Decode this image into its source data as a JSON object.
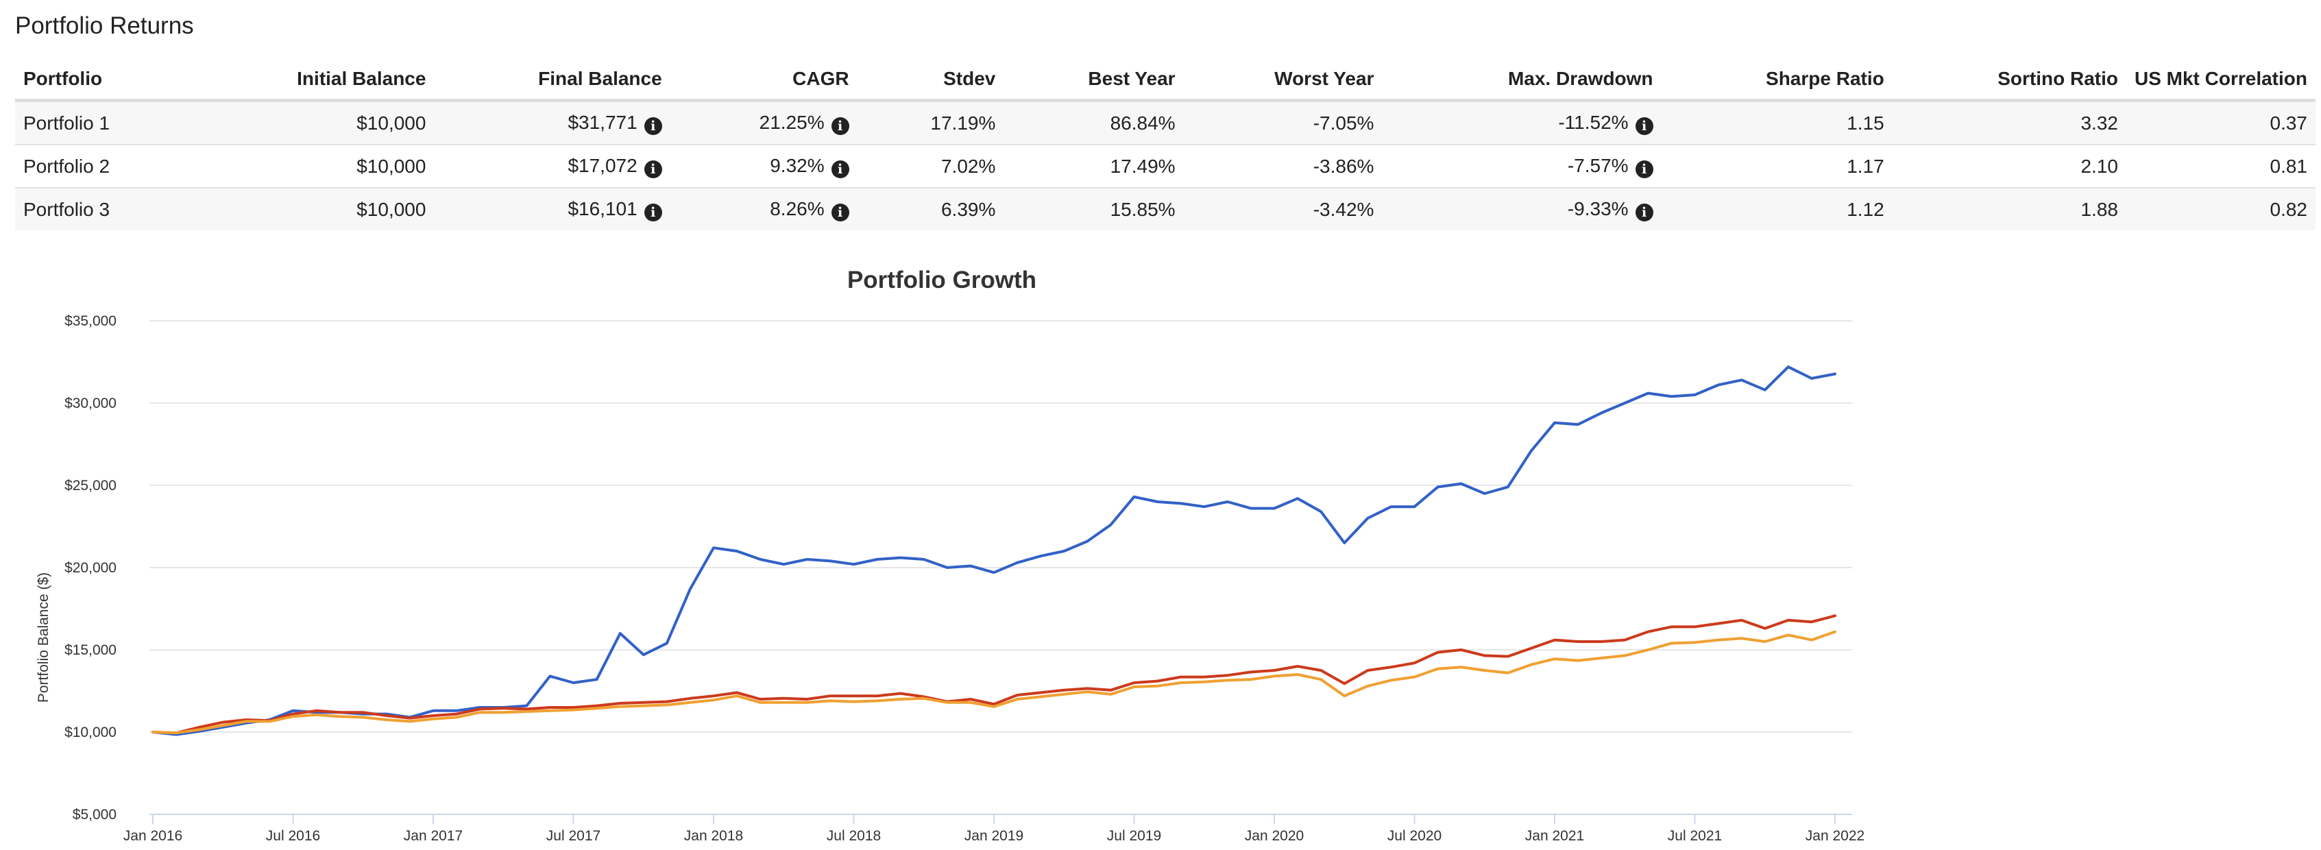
{
  "section_title": "Portfolio Returns",
  "table": {
    "columns": [
      "Portfolio",
      "Initial Balance",
      "Final Balance",
      "CAGR",
      "Stdev",
      "Best Year",
      "Worst Year",
      "Max. Drawdown",
      "Sharpe Ratio",
      "Sortino Ratio",
      "US Mkt Correlation"
    ],
    "rows": [
      {
        "portfolio": "Portfolio 1",
        "initial_balance": "$10,000",
        "final_balance": "$31,771",
        "cagr": "21.25%",
        "stdev": "17.19%",
        "best_year": "86.84%",
        "worst_year": "-7.05%",
        "max_drawdown": "-11.52%",
        "sharpe_ratio": "1.15",
        "sortino_ratio": "3.32",
        "us_mkt_correlation": "0.37"
      },
      {
        "portfolio": "Portfolio 2",
        "initial_balance": "$10,000",
        "final_balance": "$17,072",
        "cagr": "9.32%",
        "stdev": "7.02%",
        "best_year": "17.49%",
        "worst_year": "-3.86%",
        "max_drawdown": "-7.57%",
        "sharpe_ratio": "1.17",
        "sortino_ratio": "2.10",
        "us_mkt_correlation": "0.81"
      },
      {
        "portfolio": "Portfolio 3",
        "initial_balance": "$10,000",
        "final_balance": "$16,101",
        "cagr": "8.26%",
        "stdev": "6.39%",
        "best_year": "15.85%",
        "worst_year": "-3.42%",
        "max_drawdown": "-9.33%",
        "sharpe_ratio": "1.12",
        "sortino_ratio": "1.88",
        "us_mkt_correlation": "0.82"
      }
    ],
    "info_icon": "info-circle-icon",
    "info_glyph": "i"
  },
  "chart_data": {
    "type": "line",
    "title": "Portfolio Growth",
    "xlabel": "",
    "ylabel": "Portfolio Balance ($)",
    "ylim": [
      5000,
      35000
    ],
    "yticks": [
      5000,
      10000,
      15000,
      20000,
      25000,
      30000,
      35000
    ],
    "ytick_labels": [
      "$5,000",
      "$10,000",
      "$15,000",
      "$20,000",
      "$25,000",
      "$30,000",
      "$35,000"
    ],
    "xlim": [
      "2016-01",
      "2022-01"
    ],
    "xticks": [
      "2016-01",
      "2016-07",
      "2017-01",
      "2017-07",
      "2018-01",
      "2018-07",
      "2019-01",
      "2019-07",
      "2020-01",
      "2020-07",
      "2021-01",
      "2021-07",
      "2022-01"
    ],
    "xtick_labels": [
      "Jan 2016",
      "Jul 2016",
      "Jan 2017",
      "Jul 2017",
      "Jan 2018",
      "Jul 2018",
      "Jan 2019",
      "Jul 2019",
      "Jan 2020",
      "Jul 2020",
      "Jan 2021",
      "Jul 2021",
      "Jan 2022"
    ],
    "x": [
      "2016-01",
      "2016-02",
      "2016-03",
      "2016-04",
      "2016-05",
      "2016-06",
      "2016-07",
      "2016-08",
      "2016-09",
      "2016-10",
      "2016-11",
      "2016-12",
      "2017-01",
      "2017-02",
      "2017-03",
      "2017-04",
      "2017-05",
      "2017-06",
      "2017-07",
      "2017-08",
      "2017-09",
      "2017-10",
      "2017-11",
      "2017-12",
      "2018-01",
      "2018-02",
      "2018-03",
      "2018-04",
      "2018-05",
      "2018-06",
      "2018-07",
      "2018-08",
      "2018-09",
      "2018-10",
      "2018-11",
      "2018-12",
      "2019-01",
      "2019-02",
      "2019-03",
      "2019-04",
      "2019-05",
      "2019-06",
      "2019-07",
      "2019-08",
      "2019-09",
      "2019-10",
      "2019-11",
      "2019-12",
      "2020-01",
      "2020-02",
      "2020-03",
      "2020-04",
      "2020-05",
      "2020-06",
      "2020-07",
      "2020-08",
      "2020-09",
      "2020-10",
      "2020-11",
      "2020-12",
      "2021-01",
      "2021-02",
      "2021-03",
      "2021-04",
      "2021-05",
      "2021-06",
      "2021-07",
      "2021-08",
      "2021-09",
      "2021-10",
      "2021-11",
      "2021-12",
      "2022-01"
    ],
    "grid": true,
    "legend": "none",
    "series": [
      {
        "color": "#3261c7",
        "values": [
          10000,
          9850,
          10050,
          10300,
          10550,
          10750,
          11300,
          11200,
          11200,
          11100,
          11100,
          10900,
          11300,
          11300,
          11500,
          11500,
          11600,
          13400,
          13000,
          13200,
          16000,
          14700,
          15400,
          18700,
          21200,
          21000,
          20500,
          20200,
          20500,
          20400,
          20200,
          20500,
          20600,
          20500,
          20000,
          20100,
          19700,
          20300,
          20700,
          21000,
          21600,
          22600,
          24300,
          24000,
          23900,
          23700,
          24000,
          23600,
          23600,
          24200,
          23400,
          21500,
          23000,
          23700,
          23700,
          24900,
          25100,
          24500,
          24900,
          27100,
          28800,
          28700,
          29400,
          30000,
          30600,
          30400,
          30500,
          31100,
          31400,
          30800,
          32200,
          31500,
          31771
        ]
      },
      {
        "color": "#cc3a1c",
        "values": [
          10000,
          9950,
          10300,
          10600,
          10750,
          10700,
          11100,
          11300,
          11200,
          11200,
          11000,
          10850,
          11000,
          11100,
          11400,
          11450,
          11400,
          11500,
          11500,
          11600,
          11750,
          11800,
          11850,
          12050,
          12200,
          12400,
          12000,
          12050,
          12000,
          12200,
          12200,
          12200,
          12350,
          12150,
          11850,
          12000,
          11700,
          12250,
          12400,
          12550,
          12650,
          12550,
          13000,
          13100,
          13350,
          13350,
          13450,
          13650,
          13750,
          14000,
          13750,
          12950,
          13750,
          13950,
          14200,
          14850,
          15000,
          14650,
          14600,
          15100,
          15600,
          15500,
          15500,
          15600,
          16100,
          16400,
          16400,
          16600,
          16800,
          16300,
          16800,
          16700,
          17072
        ]
      },
      {
        "color": "#f0a032",
        "values": [
          10000,
          9950,
          10150,
          10400,
          10650,
          10650,
          10950,
          11050,
          10950,
          10900,
          10750,
          10650,
          10800,
          10900,
          11200,
          11200,
          11250,
          11300,
          11350,
          11450,
          11550,
          11600,
          11650,
          11800,
          11950,
          12200,
          11800,
          11800,
          11800,
          11900,
          11850,
          11900,
          12000,
          12050,
          11800,
          11800,
          11550,
          12000,
          12150,
          12300,
          12450,
          12300,
          12750,
          12800,
          13000,
          13050,
          13150,
          13200,
          13400,
          13500,
          13200,
          12200,
          12800,
          13150,
          13350,
          13850,
          13950,
          13750,
          13600,
          14100,
          14450,
          14350,
          14500,
          14650,
          15000,
          15400,
          15450,
          15600,
          15700,
          15500,
          15900,
          15600,
          16101
        ]
      }
    ]
  }
}
